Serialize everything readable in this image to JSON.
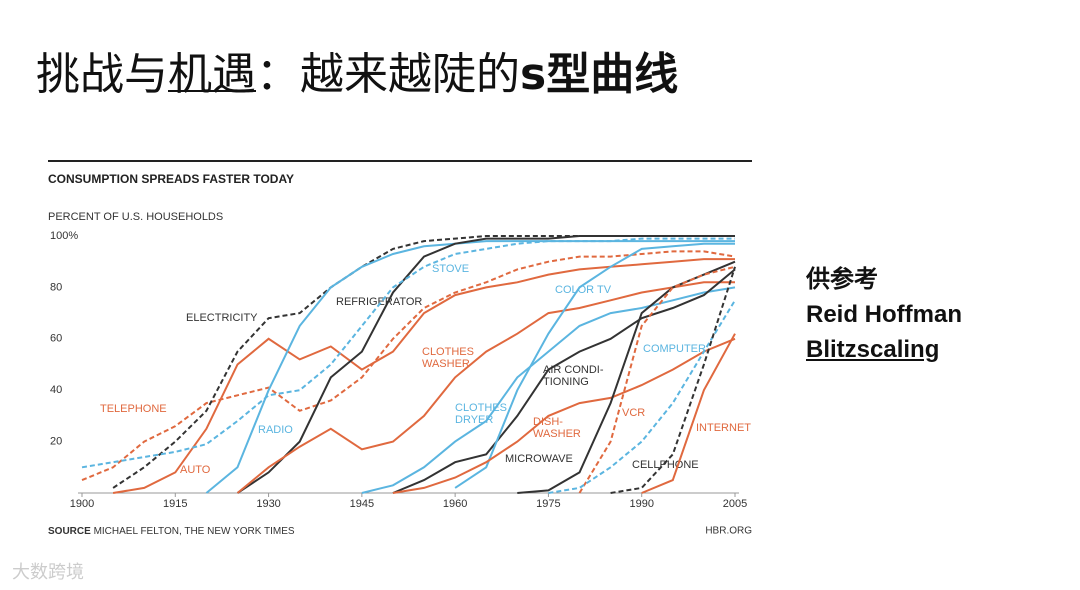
{
  "slide": {
    "title_parts": [
      "挑战与",
      "机遇",
      "：越来越陡的",
      "s型曲线"
    ],
    "note": [
      "供参考",
      "Reid Hoffman",
      "Blitzscaling"
    ],
    "watermark": "大数跨境"
  },
  "chart_data": {
    "type": "line",
    "title": "CONSUMPTION SPREADS FASTER TODAY",
    "y_label": "PERCENT OF U.S. HOUSEHOLDS",
    "source_label": "SOURCE",
    "source": "MICHAEL FELTON, THE NEW YORK TIMES",
    "credit": "HBR.ORG",
    "xlim": [
      1900,
      2005
    ],
    "xticks": [
      1900,
      1915,
      1930,
      1945,
      1960,
      1975,
      1990,
      2005
    ],
    "ylim": [
      0,
      100
    ],
    "yticks": [
      20,
      40,
      60,
      80,
      {
        "value": 100,
        "label": "100%"
      }
    ],
    "x": [
      1900,
      1905,
      1910,
      1915,
      1920,
      1925,
      1930,
      1935,
      1940,
      1945,
      1950,
      1955,
      1960,
      1965,
      1970,
      1975,
      1980,
      1985,
      1990,
      1995,
      2000,
      2005
    ],
    "series": [
      {
        "name": "TELEPHONE",
        "color": "#e0693f",
        "dashed": true,
        "values": [
          5,
          10,
          20,
          26,
          35,
          38,
          41,
          32,
          36,
          45,
          60,
          72,
          78,
          82,
          87,
          90,
          92,
          92,
          93,
          94,
          94,
          92
        ]
      },
      {
        "name": "ELECTRICITY",
        "color": "#333333",
        "dashed": true,
        "values": [
          null,
          2,
          10,
          20,
          32,
          55,
          68,
          70,
          80,
          88,
          95,
          98,
          99,
          100,
          100,
          100,
          100,
          100,
          100,
          100,
          100,
          100
        ]
      },
      {
        "name": "AUTO",
        "color": "#e0693f",
        "dashed": false,
        "values": [
          null,
          0,
          2,
          8,
          25,
          50,
          60,
          52,
          57,
          48,
          55,
          70,
          77,
          80,
          82,
          85,
          87,
          88,
          89,
          90,
          91,
          91
        ]
      },
      {
        "name": "RADIO",
        "color": "#5bb5e0",
        "dashed": false,
        "values": [
          null,
          null,
          null,
          null,
          0,
          10,
          40,
          65,
          80,
          88,
          93,
          96,
          97,
          98,
          98,
          98,
          98,
          98,
          98,
          98,
          98,
          98
        ]
      },
      {
        "name": "REFRIGERATOR",
        "color": "#333333",
        "dashed": false,
        "values": [
          null,
          null,
          null,
          null,
          null,
          0,
          8,
          20,
          45,
          55,
          78,
          92,
          97,
          99,
          99,
          99,
          100,
          100,
          100,
          100,
          100,
          100
        ]
      },
      {
        "name": "STOVE",
        "color": "#5bb5e0",
        "dashed": true,
        "values": [
          10,
          12,
          14,
          16,
          19,
          28,
          38,
          40,
          50,
          65,
          80,
          88,
          93,
          95,
          97,
          98,
          98,
          98,
          99,
          99,
          99,
          99
        ]
      },
      {
        "name": "CLOTHES\nWASHER",
        "color": "#e0693f",
        "dashed": false,
        "values": [
          null,
          null,
          null,
          null,
          null,
          0,
          10,
          18,
          25,
          17,
          20,
          30,
          45,
          55,
          62,
          70,
          72,
          75,
          78,
          80,
          82,
          82
        ]
      },
      {
        "name": "CLOTHES\nDRYER",
        "color": "#5bb5e0",
        "dashed": false,
        "values": [
          null,
          null,
          null,
          null,
          null,
          null,
          null,
          null,
          null,
          0,
          3,
          10,
          20,
          28,
          45,
          55,
          65,
          70,
          72,
          75,
          78,
          80
        ]
      },
      {
        "name": "AIR CONDI-\nTIONING",
        "color": "#333333",
        "dashed": false,
        "values": [
          null,
          null,
          null,
          null,
          null,
          null,
          null,
          null,
          null,
          null,
          0,
          5,
          12,
          15,
          30,
          48,
          55,
          60,
          68,
          72,
          77,
          87
        ]
      },
      {
        "name": "COLOR TV",
        "color": "#5bb5e0",
        "dashed": false,
        "values": [
          null,
          null,
          null,
          null,
          null,
          null,
          null,
          null,
          null,
          null,
          null,
          null,
          2,
          10,
          40,
          62,
          80,
          88,
          95,
          96,
          97,
          97
        ]
      },
      {
        "name": "DISH-\nWASHER",
        "color": "#e0693f",
        "dashed": false,
        "values": [
          null,
          null,
          null,
          null,
          null,
          null,
          null,
          null,
          null,
          null,
          0,
          2,
          6,
          12,
          20,
          30,
          35,
          37,
          42,
          48,
          55,
          60
        ]
      },
      {
        "name": "MICROWAVE",
        "color": "#333333",
        "dashed": false,
        "values": [
          null,
          null,
          null,
          null,
          null,
          null,
          null,
          null,
          null,
          null,
          null,
          null,
          null,
          null,
          0,
          1,
          8,
          35,
          70,
          80,
          85,
          90
        ]
      },
      {
        "name": "VCR",
        "color": "#e0693f",
        "dashed": true,
        "values": [
          null,
          null,
          null,
          null,
          null,
          null,
          null,
          null,
          null,
          null,
          null,
          null,
          null,
          null,
          null,
          null,
          0,
          20,
          65,
          80,
          85,
          88
        ]
      },
      {
        "name": "COMPUTER",
        "color": "#5bb5e0",
        "dashed": true,
        "values": [
          null,
          null,
          null,
          null,
          null,
          null,
          null,
          null,
          null,
          null,
          null,
          null,
          null,
          null,
          null,
          0,
          2,
          10,
          20,
          35,
          55,
          75
        ]
      },
      {
        "name": "CELLPHONE",
        "color": "#333333",
        "dashed": true,
        "values": [
          null,
          null,
          null,
          null,
          null,
          null,
          null,
          null,
          null,
          null,
          null,
          null,
          null,
          null,
          null,
          null,
          null,
          0,
          2,
          15,
          50,
          88
        ]
      },
      {
        "name": "INTERNET",
        "color": "#e0693f",
        "dashed": false,
        "values": [
          null,
          null,
          null,
          null,
          null,
          null,
          null,
          null,
          null,
          null,
          null,
          null,
          null,
          null,
          null,
          null,
          null,
          null,
          0,
          5,
          40,
          62
        ]
      }
    ]
  }
}
